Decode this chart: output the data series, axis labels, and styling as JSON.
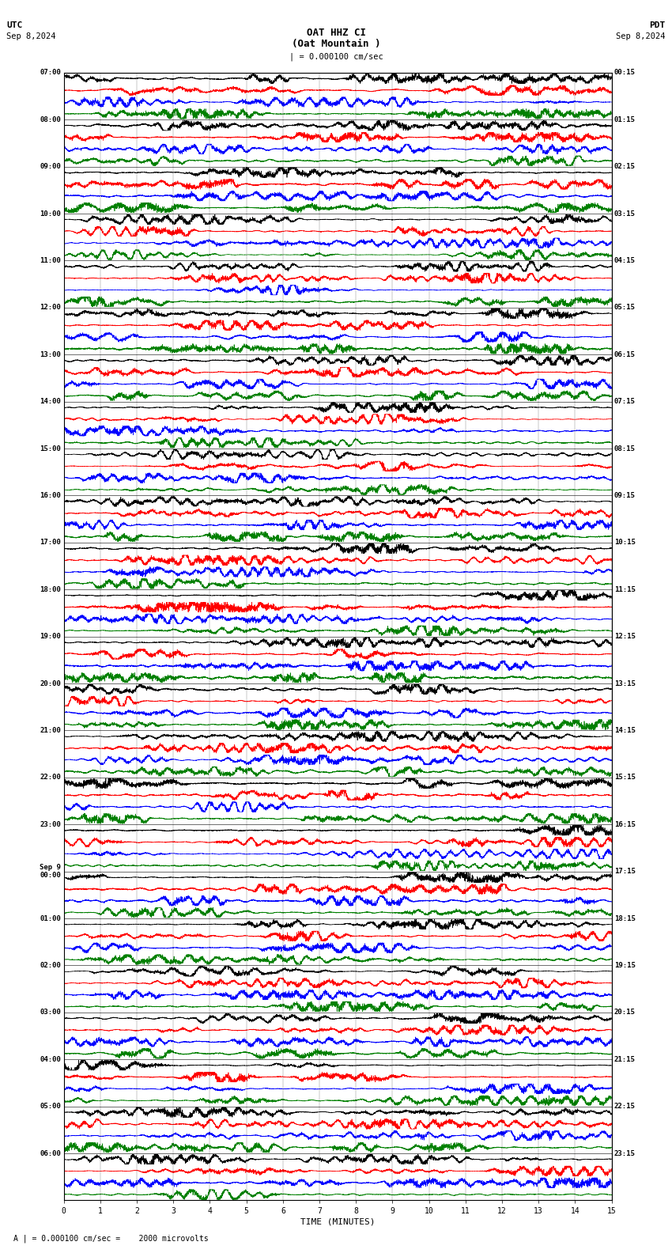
{
  "title_line1": "OAT HHZ CI",
  "title_line2": "(Oat Mountain )",
  "scale_label": "| = 0.000100 cm/sec",
  "utc_label": "UTC",
  "pdt_label": "PDT",
  "date_left": "Sep 8,2024",
  "date_right": "Sep 8,2024",
  "xlabel": "TIME (MINUTES)",
  "footer": "A | = 0.000100 cm/sec =    2000 microvolts",
  "utc_times": [
    "07:00",
    "08:00",
    "09:00",
    "10:00",
    "11:00",
    "12:00",
    "13:00",
    "14:00",
    "15:00",
    "16:00",
    "17:00",
    "18:00",
    "19:00",
    "20:00",
    "21:00",
    "22:00",
    "23:00",
    "Sep 9\n00:00",
    "01:00",
    "02:00",
    "03:00",
    "04:00",
    "05:00",
    "06:00"
  ],
  "pdt_times": [
    "00:15",
    "01:15",
    "02:15",
    "03:15",
    "04:15",
    "05:15",
    "06:15",
    "07:15",
    "08:15",
    "09:15",
    "10:15",
    "11:15",
    "12:15",
    "13:15",
    "14:15",
    "15:15",
    "16:15",
    "17:15",
    "18:15",
    "19:15",
    "20:15",
    "21:15",
    "22:15",
    "23:15"
  ],
  "trace_colors": [
    "black",
    "red",
    "blue",
    "green"
  ],
  "num_rows": 24,
  "traces_per_row": 4,
  "xlim": [
    0,
    15
  ],
  "xticks": [
    0,
    1,
    2,
    3,
    4,
    5,
    6,
    7,
    8,
    9,
    10,
    11,
    12,
    13,
    14,
    15
  ],
  "bg_color": "white",
  "fig_width": 8.5,
  "fig_height": 15.84,
  "noise_seed": 42
}
